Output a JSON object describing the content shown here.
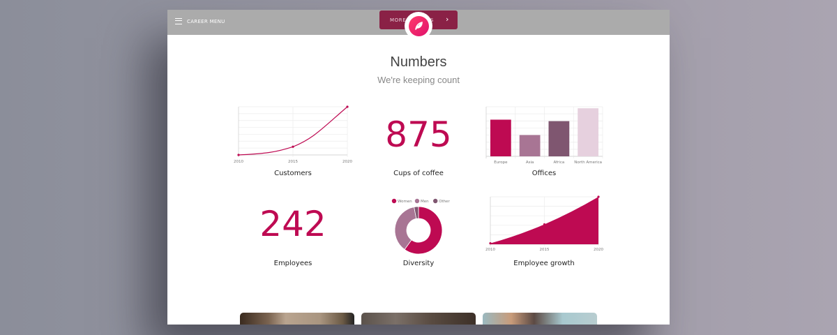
{
  "header": {
    "menu_label": "CAREER MENU",
    "more_button": "MORE CAREERS",
    "logo": "leaf-icon"
  },
  "section": {
    "title": "Numbers",
    "subtitle": "We're keeping count"
  },
  "stats": {
    "coffee": {
      "value": "875",
      "caption": "Cups of coffee"
    },
    "employees": {
      "value": "242",
      "caption": "Employees"
    }
  },
  "colors": {
    "accent": "#be0a52",
    "men": "#a87594",
    "other": "#7f5670",
    "north_america": "#e6d0de"
  },
  "chart_data": [
    {
      "type": "line",
      "title": "Customers",
      "x": [
        "2010",
        "2015",
        "2020"
      ],
      "values": [
        0,
        17,
        100
      ],
      "ylim": [
        0,
        100
      ],
      "grid": true
    },
    {
      "type": "bar",
      "title": "Offices",
      "categories": [
        "Europe",
        "Asia",
        "Africa",
        "North America"
      ],
      "values": [
        74,
        43,
        71,
        97
      ],
      "ylim": [
        0,
        100
      ],
      "colors": [
        "#be0a52",
        "#a87594",
        "#7f5670",
        "#e6d0de"
      ],
      "grid": true
    },
    {
      "type": "pie",
      "title": "Diversity",
      "donut": true,
      "legend": "top",
      "categories": [
        "Women",
        "Men",
        "Other"
      ],
      "values": [
        60,
        37,
        3
      ],
      "colors": [
        "#be0a52",
        "#a87594",
        "#7f5670"
      ]
    },
    {
      "type": "area",
      "title": "Employee growth",
      "x": [
        "2010",
        "2015",
        "2020"
      ],
      "values": [
        2,
        42,
        100
      ],
      "ylim": [
        0,
        100
      ],
      "grid": true
    }
  ]
}
